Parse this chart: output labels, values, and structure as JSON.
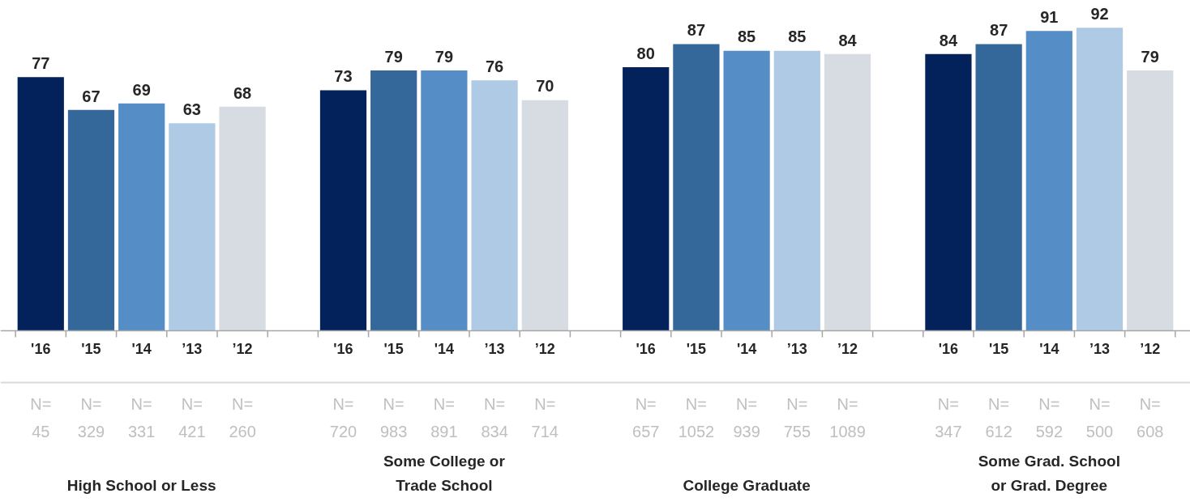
{
  "chart_data": {
    "type": "bar",
    "categories": [
      "High School or Less",
      "Some College or\nTrade School",
      "College Graduate",
      "Some Grad. School\nor Grad. Degree"
    ],
    "series": [
      {
        "name": "'16",
        "color": "#03215b",
        "values": [
          77,
          73,
          80,
          84
        ]
      },
      {
        "name": "'15",
        "color": "#34679a",
        "values": [
          67,
          79,
          87,
          87
        ]
      },
      {
        "name": "'14",
        "color": "#558dc7",
        "values": [
          69,
          79,
          85,
          91
        ]
      },
      {
        "name": "’13",
        "color": "#afcae4",
        "values": [
          63,
          76,
          85,
          92
        ]
      },
      {
        "name": "’12",
        "color": "#d7dbe2",
        "values": [
          68,
          70,
          84,
          79
        ]
      }
    ],
    "data_labels": true,
    "grid": false,
    "annotations": [
      "N=\n45",
      "N=\n329",
      "N=\n331",
      "N=\n421",
      "N=\n260",
      "N=\n720",
      "N=\n983",
      "N=\n891",
      "N=\n834",
      "N=\n714",
      "N=\n657",
      "N=\n1052",
      "N=\n939",
      "N=\n755",
      "N=\n1089",
      "N=\n347",
      "N=\n612",
      "N=\n592",
      "N=\n500",
      "N=\n608"
    ]
  }
}
